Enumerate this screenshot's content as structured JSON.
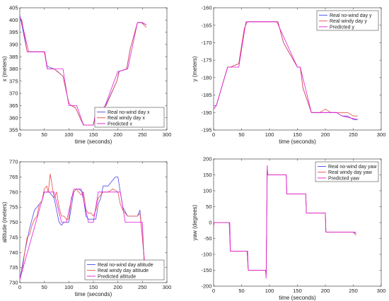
{
  "chart_data": [
    {
      "type": "line",
      "xlabel": "time (seconds)",
      "ylabel": "x (meters)",
      "xlim": [
        0,
        300
      ],
      "ylim": [
        355,
        405
      ],
      "xticks": [
        "0",
        "50",
        "100",
        "150",
        "200",
        "250",
        "300"
      ],
      "yticks": [
        "355",
        "360",
        "365",
        "370",
        "375",
        "380",
        "385",
        "390",
        "395",
        "400",
        "405"
      ],
      "legend_position": "bottom-right",
      "series": [
        {
          "name": "Real no-wind day x",
          "color": "#4a4ae6",
          "x": [
            0,
            3,
            15,
            19,
            50,
            56,
            70,
            76,
            88,
            100,
            105,
            114,
            125,
            130,
            140,
            150,
            154,
            170,
            175,
            198,
            202,
            218,
            225,
            240,
            248,
            258
          ],
          "y": [
            402,
            399,
            387,
            387,
            387,
            381,
            380,
            379,
            377,
            366,
            365,
            364,
            359,
            357,
            357,
            357,
            361,
            364,
            365,
            375,
            379,
            380,
            388,
            399,
            399,
            398
          ]
        },
        {
          "name": "Real windy day x",
          "color": "#e64a4a",
          "x": [
            0,
            4,
            15,
            19,
            51,
            56,
            70,
            77,
            88,
            100,
            105,
            114,
            125,
            131,
            140,
            150,
            155,
            170,
            176,
            198,
            203,
            218,
            225,
            240,
            248,
            258
          ],
          "y": [
            401,
            400,
            387,
            387,
            387,
            380,
            380,
            379,
            377,
            366,
            365,
            364,
            359,
            357,
            357,
            357,
            361,
            364,
            365,
            375,
            379,
            380,
            388,
            399,
            399,
            397
          ]
        },
        {
          "name": "Predicted x",
          "color": "#e31ad9",
          "x": [
            0,
            3,
            18,
            50,
            56,
            72,
            88,
            100,
            116,
            130,
            150,
            156,
            172,
            200,
            203,
            220,
            240,
            250,
            258
          ],
          "y": [
            401,
            400,
            387,
            387,
            380,
            380,
            380,
            365,
            365,
            357,
            357,
            364,
            364,
            379,
            379,
            380,
            399,
            399,
            398
          ]
        }
      ]
    },
    {
      "type": "line",
      "xlabel": "time (seconds)",
      "ylabel": "y (meters)",
      "xlim": [
        0,
        300
      ],
      "ylim": [
        -195,
        -160
      ],
      "xticks": [
        "0",
        "50",
        "100",
        "150",
        "200",
        "250",
        "300"
      ],
      "yticks": [
        "-195",
        "-190",
        "-185",
        "-180",
        "-175",
        "-170",
        "-165",
        "-160"
      ],
      "legend_position": "top-right",
      "series": [
        {
          "name": "Real no-wind day y",
          "color": "#4a4ae6",
          "x": [
            0,
            5,
            25,
            30,
            45,
            55,
            60,
            80,
            100,
            115,
            125,
            150,
            155,
            160,
            175,
            190,
            200,
            210,
            220,
            230,
            240,
            250,
            258
          ],
          "y": [
            -188,
            -188,
            -177,
            -177,
            -176,
            -166,
            -164,
            -164,
            -164,
            -164,
            -170,
            -177,
            -177,
            -183,
            -190,
            -190,
            -190,
            -190,
            -190,
            -191,
            -191,
            -192,
            -192
          ]
        },
        {
          "name": "Real windy day y",
          "color": "#e64a4a",
          "x": [
            0,
            5,
            25,
            30,
            45,
            55,
            60,
            80,
            100,
            115,
            125,
            150,
            155,
            160,
            175,
            190,
            200,
            210,
            220,
            230,
            240,
            250,
            258
          ],
          "y": [
            -189,
            -188,
            -177,
            -177,
            -176,
            -166,
            -164,
            -164,
            -164,
            -164,
            -170,
            -177,
            -177,
            -183,
            -190,
            -190,
            -189,
            -190,
            -190,
            -190,
            -190,
            -191,
            -191
          ]
        },
        {
          "name": "Predicted y",
          "color": "#e31ad9",
          "x": [
            0,
            5,
            25,
            45,
            58,
            113,
            150,
            155,
            175,
            220,
            230,
            258
          ],
          "y": [
            -189,
            -188,
            -177,
            -177,
            -164,
            -164,
            -177,
            -177,
            -190,
            -190,
            -191,
            -192
          ]
        }
      ]
    },
    {
      "type": "line",
      "xlabel": "time (seconds)",
      "ylabel": "altitude (meters)",
      "xlim": [
        0,
        300
      ],
      "ylim": [
        730,
        770
      ],
      "xticks": [
        "0",
        "50",
        "100",
        "150",
        "200",
        "250",
        "300"
      ],
      "yticks": [
        "730",
        "735",
        "740",
        "745",
        "750",
        "755",
        "760",
        "765",
        "770"
      ],
      "legend_position": "bottom-right",
      "series": [
        {
          "name": "Real no-wind day altitude",
          "color": "#4a4ae6",
          "x": [
            0,
            10,
            20,
            25,
            30,
            45,
            50,
            55,
            60,
            70,
            80,
            85,
            90,
            100,
            110,
            115,
            120,
            128,
            135,
            140,
            145,
            155,
            160,
            165,
            170,
            180,
            185,
            195,
            200,
            205,
            210,
            220,
            230,
            240,
            245,
            250,
            255
          ],
          "y": [
            731,
            740,
            748,
            751,
            754,
            757,
            760,
            760,
            760,
            758,
            750,
            749,
            750,
            750,
            760,
            761,
            761,
            760,
            752,
            751,
            751,
            751,
            756,
            758,
            762,
            762,
            763,
            765,
            765,
            760,
            755,
            752,
            752,
            752,
            754,
            745,
            735
          ]
        },
        {
          "name": "Real windy day altitude",
          "color": "#e64a4a",
          "x": [
            0,
            5,
            10,
            15,
            20,
            25,
            30,
            35,
            40,
            45,
            50,
            55,
            58,
            62,
            65,
            70,
            75,
            80,
            85,
            90,
            95,
            100,
            105,
            110,
            115,
            120,
            125,
            130,
            135,
            140,
            145,
            150,
            155,
            160,
            165,
            170,
            180,
            190,
            200,
            205,
            210,
            215,
            220,
            230,
            240,
            245,
            250,
            255
          ],
          "y": [
            731,
            734,
            740,
            745,
            746,
            749,
            751,
            752,
            756,
            757,
            761,
            762,
            760,
            766,
            763,
            758,
            760,
            755,
            752,
            752,
            751,
            751,
            758,
            760,
            761,
            760,
            759,
            760,
            754,
            753,
            753,
            752,
            754,
            758,
            759,
            760,
            760,
            761,
            760,
            756,
            754,
            753,
            752,
            752,
            752,
            753,
            745,
            736
          ]
        },
        {
          "name": "Predicted altitude",
          "color": "#e31ad9",
          "x": [
            0,
            50,
            70,
            85,
            95,
            110,
            125,
            140,
            150,
            160,
            175,
            205,
            215,
            240,
            250,
            255
          ],
          "y": [
            731,
            760,
            760,
            750,
            750,
            761,
            761,
            750,
            750,
            760,
            760,
            760,
            750,
            750,
            750,
            731
          ]
        }
      ]
    },
    {
      "type": "line",
      "xlabel": "time (seconds)",
      "ylabel": "yaw (degrees)",
      "xlim": [
        0,
        300
      ],
      "ylim": [
        -200,
        200
      ],
      "xticks": [
        "0",
        "50",
        "100",
        "150",
        "200",
        "250",
        "300"
      ],
      "yticks": [
        "-200",
        "-150",
        "-100",
        "-50",
        "0",
        "50",
        "100",
        "150",
        "200"
      ],
      "legend_position": "top-right",
      "series": [
        {
          "name": "Real no-wind day yaw",
          "color": "#4a4ae6",
          "x": [
            0,
            1,
            28,
            30,
            60,
            62,
            93,
            94,
            96,
            97,
            130,
            131,
            165,
            166,
            200,
            201,
            250,
            255
          ],
          "y": [
            -10,
            0,
            0,
            -90,
            -90,
            -150,
            -150,
            -160,
            160,
            150,
            150,
            90,
            90,
            30,
            30,
            -30,
            -30,
            -35
          ]
        },
        {
          "name": "Real windy day yaw",
          "color": "#e64a4a",
          "x": [
            0,
            1,
            28,
            30,
            60,
            62,
            93,
            94,
            96,
            97,
            130,
            131,
            165,
            166,
            200,
            201,
            250,
            255
          ],
          "y": [
            -15,
            0,
            0,
            -90,
            -90,
            -150,
            -150,
            -165,
            165,
            150,
            150,
            90,
            90,
            30,
            30,
            -30,
            -30,
            -40
          ]
        },
        {
          "name": "Predicted yaw",
          "color": "#e31ad9",
          "x": [
            0,
            1,
            29,
            30,
            61,
            62,
            93,
            94,
            96,
            97,
            130,
            131,
            165,
            166,
            200,
            201,
            255
          ],
          "y": [
            -10,
            0,
            0,
            -90,
            -90,
            -150,
            -150,
            -175,
            180,
            150,
            150,
            90,
            90,
            30,
            30,
            -30,
            -30
          ]
        }
      ]
    }
  ]
}
